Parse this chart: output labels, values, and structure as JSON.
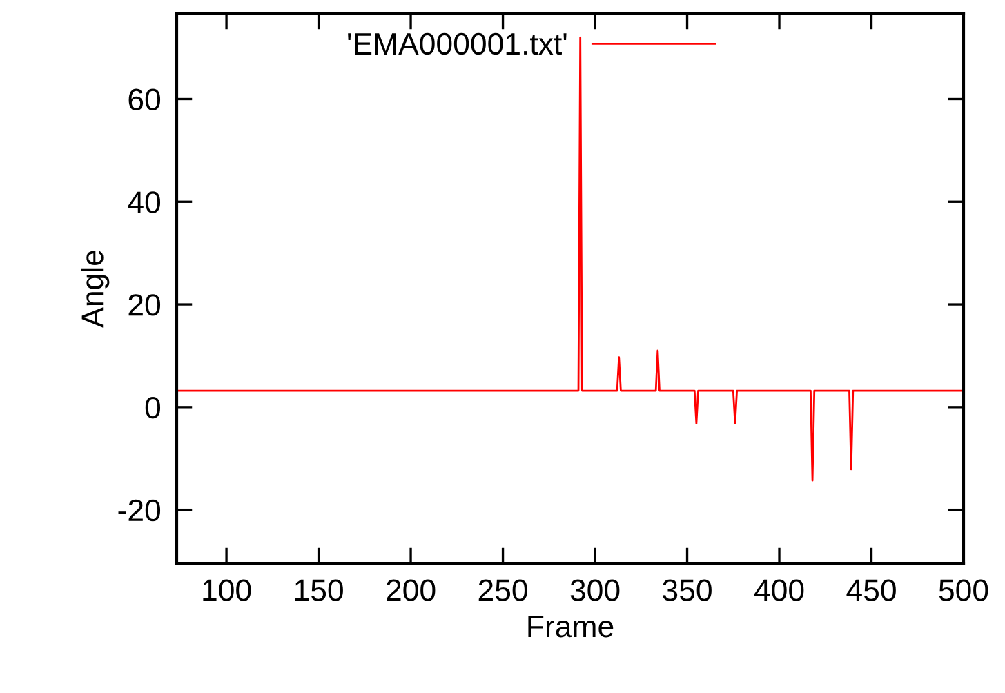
{
  "chart_data": {
    "type": "line",
    "xlabel": "Frame",
    "ylabel": "Angle",
    "series": [
      {
        "name": "'EMA000001.txt'",
        "color": "#ff0000",
        "x": [
          73,
          291,
          292,
          293,
          312,
          313,
          314,
          333,
          334,
          335,
          354,
          355,
          356,
          375,
          376,
          377,
          417,
          418,
          419,
          438,
          439,
          440,
          500
        ],
        "values": [
          3.2,
          3.2,
          72,
          3.2,
          3.2,
          9.7,
          3.2,
          3.2,
          11,
          3.2,
          3.2,
          -3.2,
          3.2,
          3.2,
          -3.2,
          3.2,
          3.2,
          -14.3,
          3.2,
          3.2,
          -12.1,
          3.2,
          3.2
        ]
      }
    ],
    "xlim": [
      73,
      500
    ],
    "xticks": [
      100,
      150,
      200,
      250,
      300,
      350,
      400,
      450,
      500
    ],
    "ylim": [
      -30.4,
      76.6
    ],
    "yticks": [
      -20,
      0,
      20,
      40,
      60
    ],
    "grid": false,
    "legend": "top",
    "marker": "none",
    "line_style": "solid"
  }
}
